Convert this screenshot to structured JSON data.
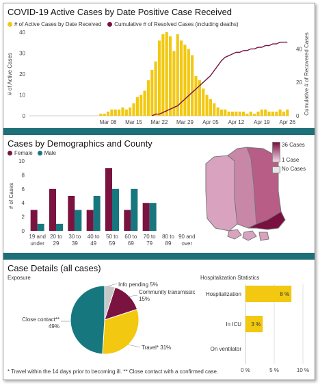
{
  "panels": {
    "timeline_title": "COVID-19 Active Cases by Date Positive Case Received",
    "demographics_title": "Cases by Demographics and County",
    "details_title": "Case Details (all cases)",
    "exposure_label": "Exposure",
    "hosp_label": "Hospitalization Statistics",
    "footnote": "* Travel within the 14 days prior to becoming ill. ** Close contact with a confirmed case."
  },
  "map": {
    "legend_max": "36 Cases",
    "legend_min": "1 Case",
    "legend_none": "No Cases",
    "colors": {
      "high": "#7a1040",
      "mid": "#b85d86",
      "low": "#d9a3bf",
      "lightest": "#e8c8d8",
      "border": "#888888"
    }
  },
  "colors": {
    "yellow": "#f2c811",
    "maroon": "#7a1340",
    "teal": "#17777f",
    "grey": "#c8c8c8",
    "divider": "#1d6f78"
  },
  "chart_data": [
    {
      "type": "bar",
      "title": "COVID-19 Active Cases by Date Positive Case Received",
      "series": [
        {
          "name": "# of Active Cases by Date Received",
          "type": "bar",
          "axis": "left",
          "values": [
            0,
            0,
            0,
            0,
            0,
            0,
            0,
            0,
            0,
            0,
            0,
            0,
            0,
            0,
            0,
            0,
            0,
            0,
            0,
            1,
            1,
            2,
            3,
            3,
            3,
            4,
            3,
            4,
            6,
            9,
            10,
            12,
            17,
            22,
            26,
            36,
            39,
            40,
            38,
            31,
            39,
            36,
            34,
            32,
            29,
            19,
            17,
            13,
            10,
            8,
            6,
            4,
            3,
            3,
            2,
            2,
            2,
            2,
            2,
            1,
            2,
            1,
            2,
            3,
            3,
            2,
            2,
            2,
            3,
            2,
            3
          ]
        },
        {
          "name": "Cumulative # of Resolved Cases (including deaths)",
          "type": "line",
          "axis": "right",
          "values": [
            0,
            0,
            0,
            0,
            0,
            0,
            0,
            0,
            0,
            0,
            0,
            0,
            0,
            0,
            0,
            0,
            0,
            0,
            0,
            0,
            0,
            0,
            0,
            0,
            0,
            0,
            0,
            0,
            0,
            0,
            0,
            0,
            0,
            0,
            1,
            1,
            2,
            3,
            4,
            5,
            6,
            8,
            10,
            12,
            14,
            16,
            18,
            20,
            22,
            24,
            27,
            30,
            33,
            35,
            36,
            37,
            38,
            38,
            39,
            39,
            40,
            40,
            41,
            41,
            42,
            42,
            43,
            43,
            44,
            44,
            44
          ]
        }
      ],
      "x_start": "2020-02-16",
      "x_ticks": [
        "Mar 08",
        "Mar 15",
        "Mar 22",
        "Mar 29",
        "Apr 05",
        "Apr 12",
        "Apr 19",
        "Apr 26"
      ],
      "ylabel": "# of Active Cases",
      "y2label": "Cumulative # of Recovered Cases",
      "ylim": [
        0,
        40
      ],
      "y_ticks": [
        0,
        10,
        20,
        30,
        40
      ],
      "y2lim": [
        0,
        50
      ],
      "y2_ticks": [
        0,
        20,
        40
      ],
      "legend_position": "top-left"
    },
    {
      "type": "bar",
      "title": "Cases by Demographics and County",
      "categories": [
        [
          "19 and",
          "under"
        ],
        [
          "20 to",
          "29"
        ],
        [
          "30 to",
          "39"
        ],
        [
          "40 to",
          "49"
        ],
        [
          "50 to",
          "59"
        ],
        [
          "60 to",
          "69"
        ],
        [
          "70 to",
          "79"
        ],
        [
          "80 to",
          "89"
        ],
        [
          "90 and",
          "over"
        ]
      ],
      "series": [
        {
          "name": "Female",
          "values": [
            3,
            6,
            5,
            3,
            9,
            3,
            4,
            0,
            0
          ]
        },
        {
          "name": "Male",
          "values": [
            1,
            1,
            3,
            5,
            6,
            6,
            4,
            0,
            0
          ]
        }
      ],
      "ylabel": "# of Cases",
      "ylim": [
        0,
        10
      ],
      "y_ticks": [
        0,
        2,
        4,
        6,
        8,
        10
      ],
      "legend_position": "top-left"
    },
    {
      "type": "pie",
      "slices": [
        {
          "label": "Info pending",
          "value": 5
        },
        {
          "label": "Community transmission",
          "value": 15
        },
        {
          "label": "Travel*",
          "value": 31
        },
        {
          "label": "Close contact**",
          "value": 49
        }
      ],
      "labels_text": {
        "info": "Info pending 5%",
        "community": "Community transmission",
        "community_pct": "15%",
        "travel": "Travel* 31%",
        "close": "Close contact**",
        "close_pct": "49%"
      }
    },
    {
      "type": "bar",
      "orientation": "horizontal",
      "title": "Hospitalization Statistics",
      "categories": [
        "Hospitalization",
        "In ICU",
        "On ventilator"
      ],
      "values": [
        8,
        3,
        0
      ],
      "value_labels": [
        "8 %",
        "3 %",
        ""
      ],
      "xlim": [
        0,
        10
      ],
      "x_ticks": [
        "0 %",
        "5 %",
        "10 %"
      ]
    }
  ]
}
